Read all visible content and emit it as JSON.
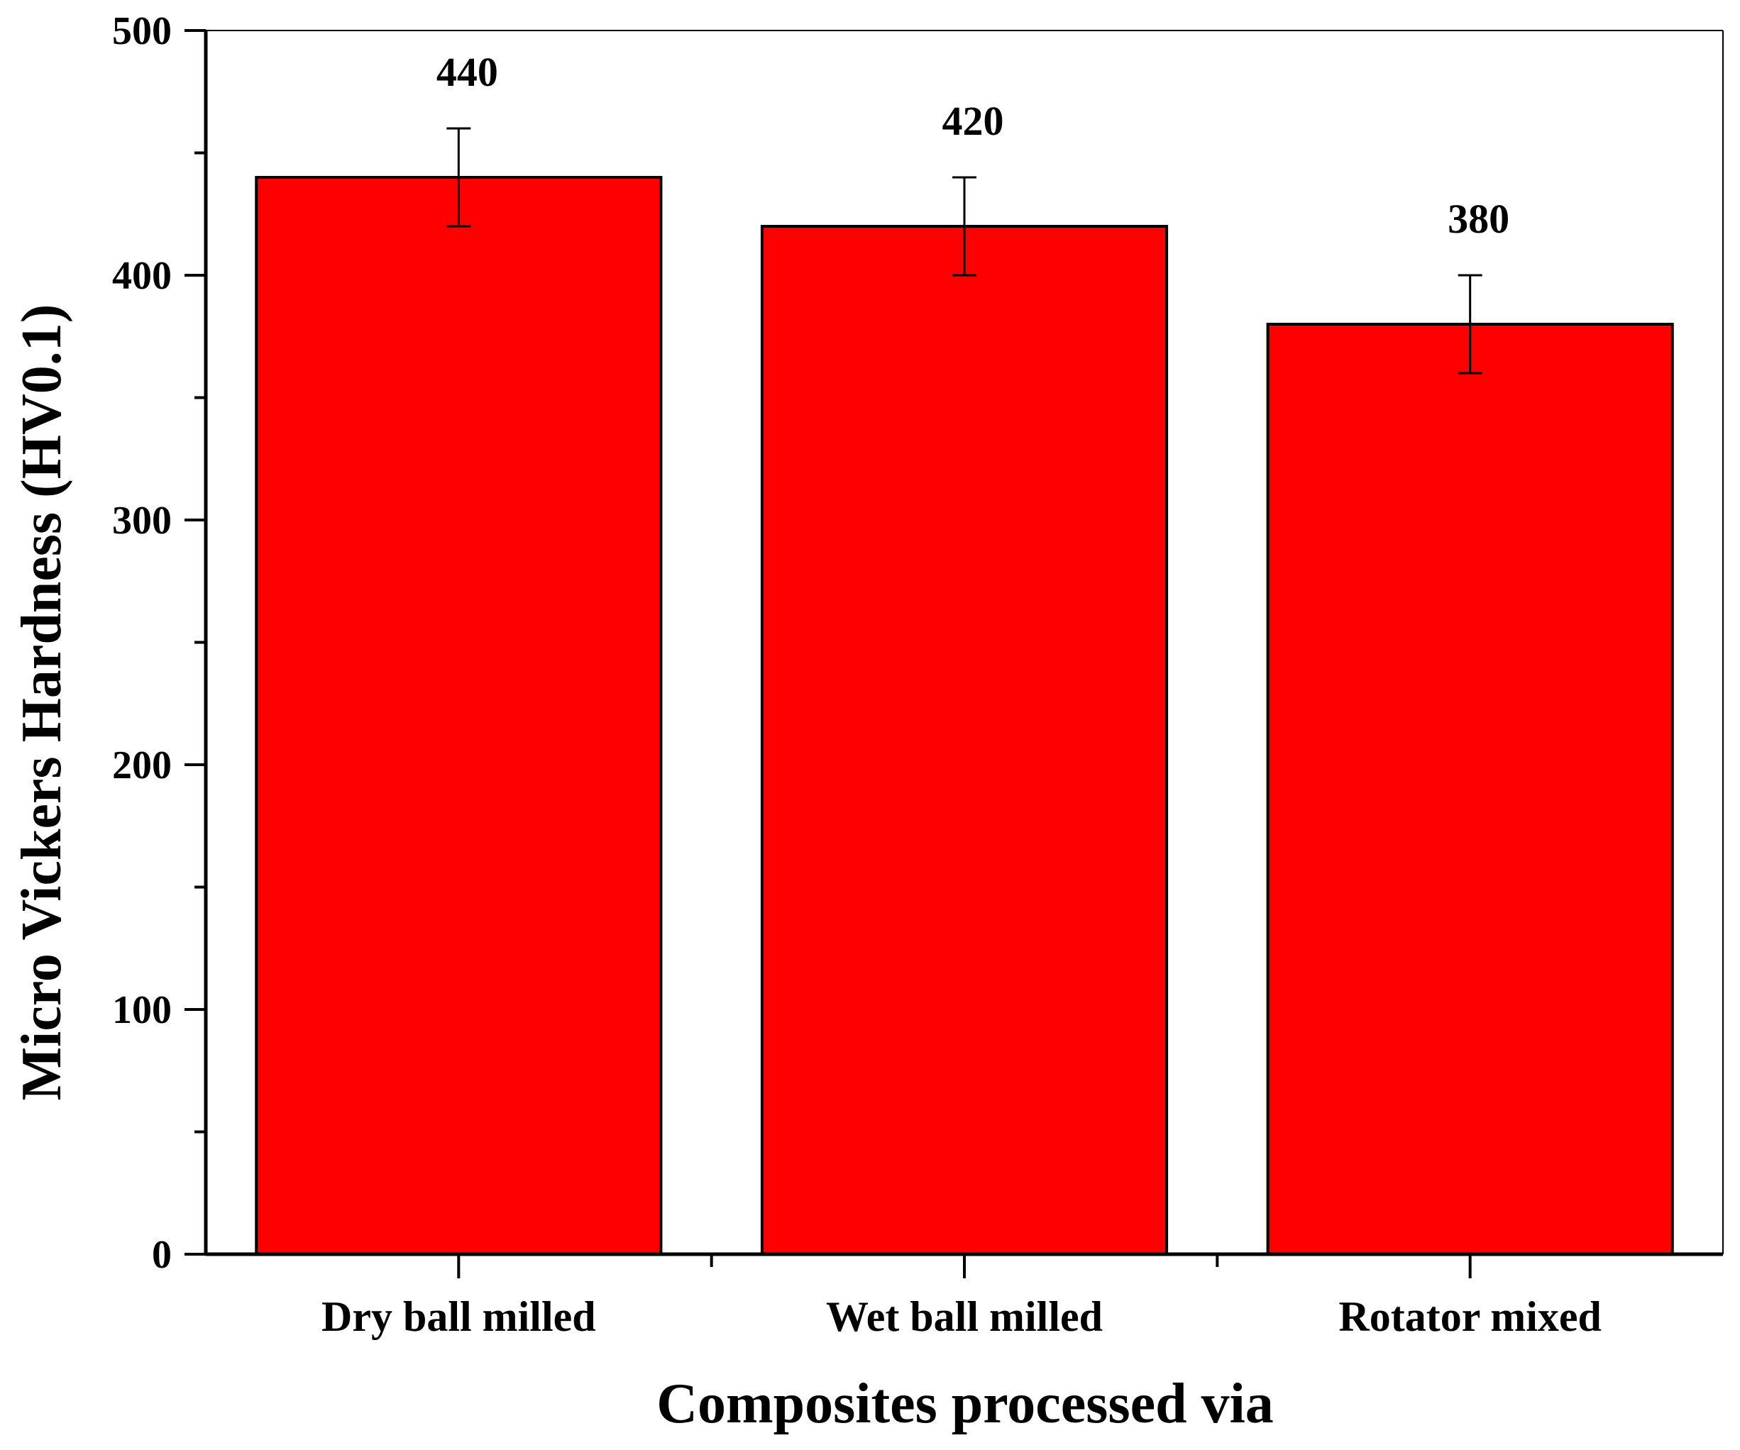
{
  "chart_data": {
    "type": "bar",
    "categories": [
      "Dry ball milled",
      "Wet ball milled",
      "Rotator mixed"
    ],
    "values": [
      440,
      420,
      380
    ],
    "error": [
      20,
      20,
      20
    ],
    "data_labels": [
      "440",
      "420",
      "380"
    ],
    "xlabel": "Composites processed via",
    "ylabel": "Micro Vickers Hardness (HV0.1)",
    "ylim": [
      0,
      500
    ],
    "yticks": [
      0,
      100,
      200,
      300,
      400,
      500
    ],
    "y_minor_step": 50,
    "grid": false,
    "legend": "none",
    "colors": {
      "bar_fill": "#ff0000",
      "bar_stroke": "#000000",
      "axis": "#000000"
    }
  }
}
